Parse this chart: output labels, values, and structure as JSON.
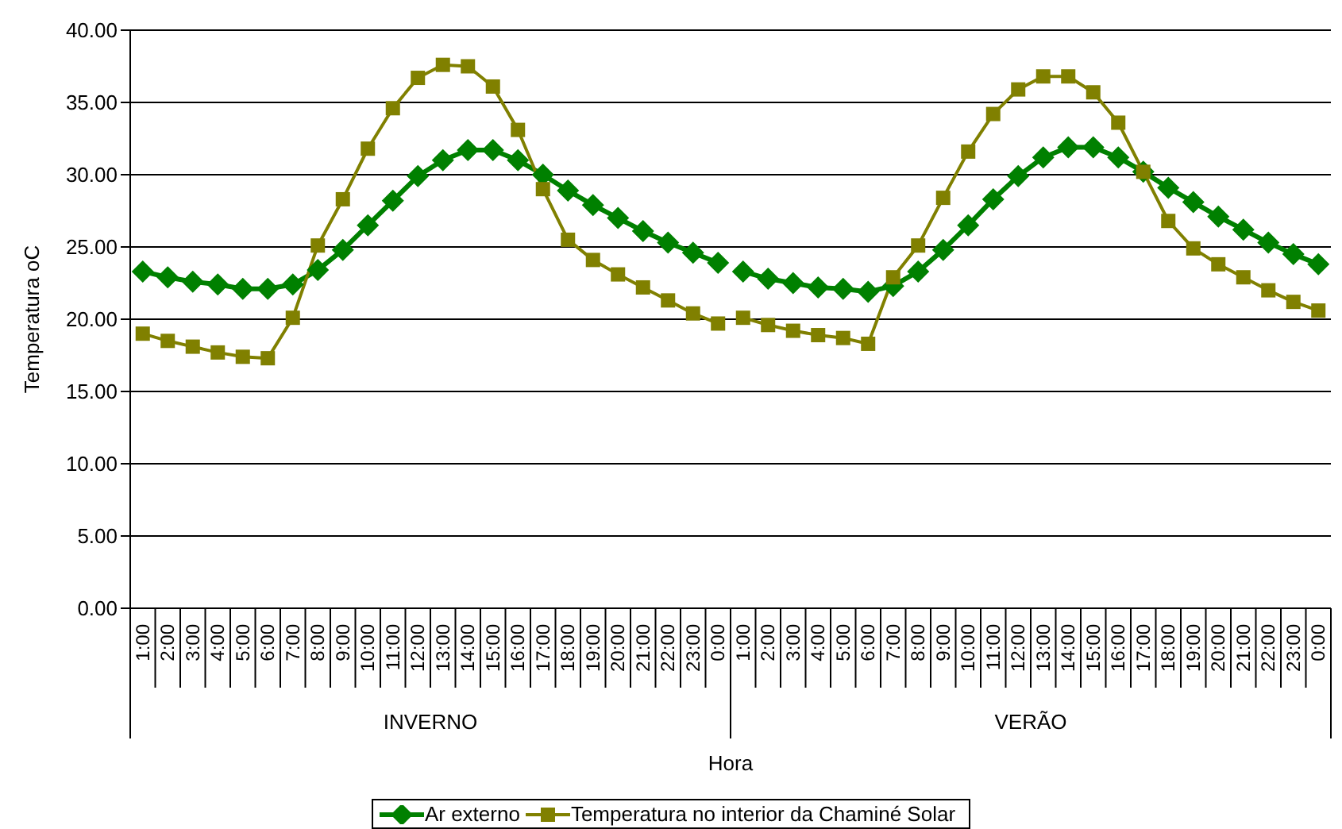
{
  "chart_data": {
    "type": "line",
    "xlabel": "Hora",
    "ylabel": "Temperatura oC",
    "categories": [
      "1:00",
      "2:00",
      "3:00",
      "4:00",
      "5:00",
      "6:00",
      "7:00",
      "8:00",
      "9:00",
      "10:00",
      "11:00",
      "12:00",
      "13:00",
      "14:00",
      "15:00",
      "16:00",
      "17:00",
      "18:00",
      "19:00",
      "20:00",
      "21:00",
      "22:00",
      "23:00",
      "0:00",
      "1:00",
      "2:00",
      "3:00",
      "4:00",
      "5:00",
      "6:00",
      "7:00",
      "8:00",
      "9:00",
      "10:00",
      "11:00",
      "12:00",
      "13:00",
      "14:00",
      "15:00",
      "16:00",
      "17:00",
      "18:00",
      "19:00",
      "20:00",
      "21:00",
      "22:00",
      "23:00",
      "0:00"
    ],
    "annotations": [
      "INVERNO",
      "VERÃO"
    ],
    "series": [
      {
        "name": "Ar externo",
        "color": "#008000",
        "marker": "diamond",
        "values": [
          23.3,
          22.9,
          22.6,
          22.4,
          22.1,
          22.1,
          22.4,
          23.4,
          24.8,
          26.5,
          28.2,
          29.9,
          31.0,
          31.7,
          31.7,
          31.0,
          30.0,
          28.9,
          27.9,
          27.0,
          26.1,
          25.3,
          24.6,
          23.9,
          23.3,
          22.8,
          22.5,
          22.2,
          22.1,
          21.9,
          22.3,
          23.3,
          24.8,
          26.5,
          28.3,
          29.9,
          31.2,
          31.9,
          31.9,
          31.2,
          30.2,
          29.1,
          28.1,
          27.1,
          26.2,
          25.3,
          24.5,
          23.8
        ]
      },
      {
        "name": "Temperatura no interior da Chaminé Solar",
        "color": "#808000",
        "marker": "square",
        "values": [
          19.0,
          18.5,
          18.1,
          17.7,
          17.4,
          17.3,
          20.1,
          25.1,
          28.3,
          31.8,
          34.6,
          36.7,
          37.6,
          37.5,
          36.1,
          33.1,
          29.0,
          25.5,
          24.1,
          23.1,
          22.2,
          21.3,
          20.4,
          19.7,
          20.1,
          19.6,
          19.2,
          18.9,
          18.7,
          18.3,
          22.9,
          25.1,
          28.4,
          31.6,
          34.2,
          35.9,
          36.8,
          36.8,
          35.7,
          33.6,
          30.2,
          26.8,
          24.9,
          23.8,
          22.9,
          22.0,
          21.2,
          20.6
        ]
      }
    ],
    "ylim": [
      0,
      40
    ],
    "yticks": [
      {
        "value": 0,
        "label": "0.00"
      },
      {
        "value": 5,
        "label": "5.00"
      },
      {
        "value": 10,
        "label": "10.00"
      },
      {
        "value": 15,
        "label": "15.00"
      },
      {
        "value": 20,
        "label": "20.00"
      },
      {
        "value": 25,
        "label": "25.00"
      },
      {
        "value": 30,
        "label": "30.00"
      },
      {
        "value": 35,
        "label": "35.00"
      },
      {
        "value": 40,
        "label": "40.00"
      }
    ],
    "grid": "y",
    "legend": "bottom"
  }
}
